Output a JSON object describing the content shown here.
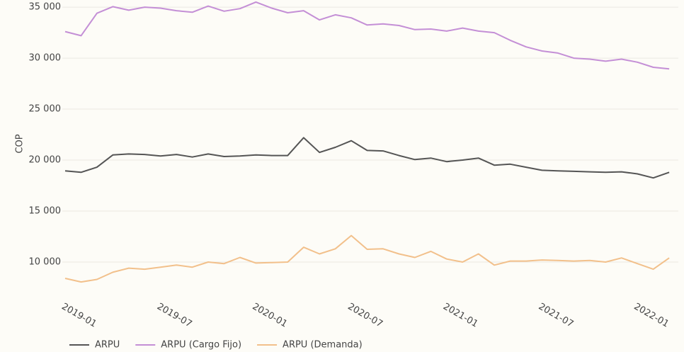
{
  "chart_data": {
    "type": "line",
    "y_label": "COP",
    "categories": [
      "2019-01",
      null,
      null,
      null,
      null,
      null,
      "2019-07",
      null,
      null,
      null,
      null,
      null,
      "2020-01",
      null,
      null,
      null,
      null,
      null,
      "2020-07",
      null,
      null,
      null,
      null,
      null,
      "2021-01",
      null,
      null,
      null,
      null,
      null,
      "2021-07",
      null,
      null,
      null,
      null,
      null,
      "2022-01",
      null,
      null
    ],
    "series": [
      {
        "name": "ARPU",
        "color": "#555555",
        "values": [
          18950,
          18800,
          19300,
          20500,
          20600,
          20550,
          20400,
          20550,
          20300,
          20600,
          20350,
          20400,
          20500,
          20450,
          20450,
          22200,
          20750,
          21250,
          21900,
          20950,
          20900,
          20450,
          20050,
          20200,
          19850,
          20000,
          20200,
          19500,
          19600,
          19300,
          19000,
          18950,
          18900,
          18850,
          18800,
          18850,
          18650,
          18250,
          18800
        ]
      },
      {
        "name": "ARPU (Cargo Fijo)",
        "color": "#c48fd6",
        "values": [
          32600,
          32200,
          34400,
          35050,
          34700,
          35000,
          34900,
          34650,
          34500,
          35100,
          34600,
          34850,
          35500,
          34900,
          34450,
          34650,
          33750,
          34250,
          33950,
          33250,
          33350,
          33200,
          32800,
          32850,
          32650,
          32950,
          32650,
          32500,
          31750,
          31100,
          30700,
          30500,
          30000,
          29900,
          29700,
          29900,
          29600,
          29100,
          28950
        ]
      },
      {
        "name": "ARPU (Demanda)",
        "color": "#f2c08b",
        "values": [
          8400,
          8050,
          8300,
          9000,
          9400,
          9300,
          9500,
          9700,
          9500,
          10000,
          9850,
          10450,
          9900,
          9950,
          10000,
          11450,
          10800,
          11300,
          12600,
          11250,
          11300,
          10800,
          10450,
          11050,
          10300,
          10000,
          10800,
          9700,
          10100,
          10100,
          10200,
          10150,
          10100,
          10150,
          10000,
          10400,
          9850,
          9300,
          10400
        ]
      }
    ],
    "ylim": [
      7500,
      35700
    ],
    "yticks": [
      {
        "value": 10000,
        "label": "10 000"
      },
      {
        "value": 15000,
        "label": "15 000"
      },
      {
        "value": 20000,
        "label": "20 000"
      },
      {
        "value": 25000,
        "label": "25 000"
      },
      {
        "value": 30000,
        "label": "30 000"
      },
      {
        "value": 35000,
        "label": "35 000"
      }
    ],
    "grid": true,
    "legend": "bottom"
  }
}
